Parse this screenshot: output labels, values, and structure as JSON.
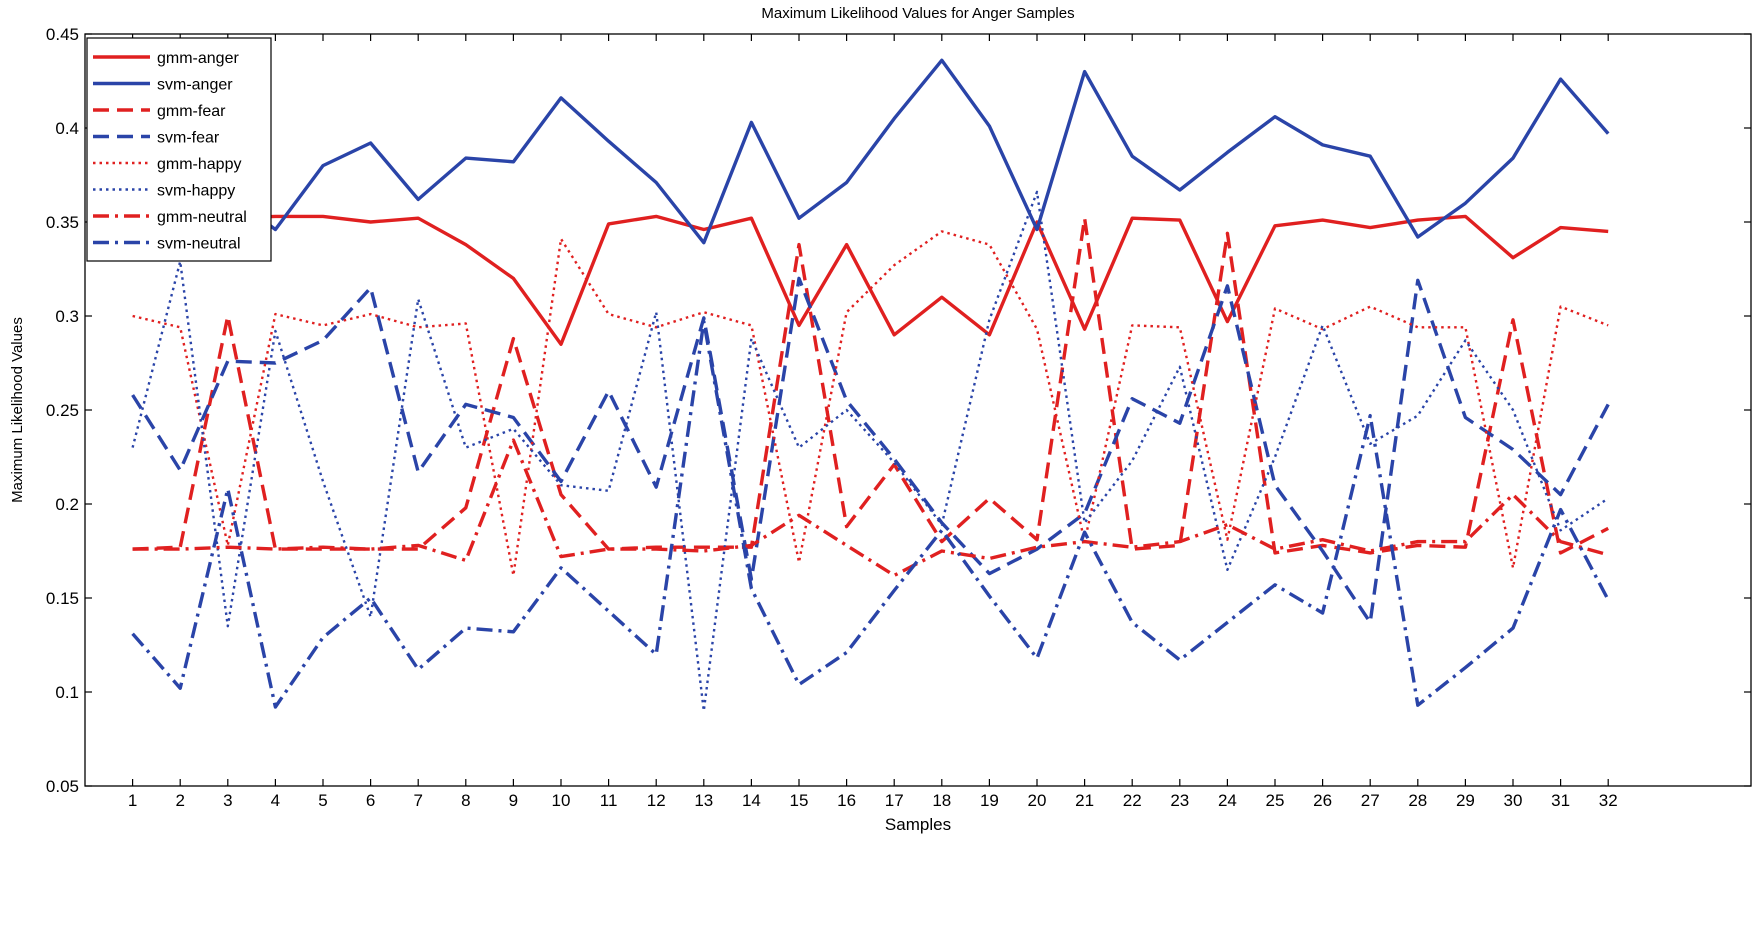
{
  "chart_data": {
    "type": "line",
    "title": "Maximum Likelihood Values for Anger Samples",
    "xlabel": "Samples",
    "ylabel": "Maximum Likelihood Values",
    "x": [
      1,
      2,
      3,
      4,
      5,
      6,
      7,
      8,
      9,
      10,
      11,
      12,
      13,
      14,
      15,
      16,
      17,
      18,
      19,
      20,
      21,
      22,
      23,
      24,
      25,
      26,
      27,
      28,
      29,
      30,
      31,
      32
    ],
    "xlim": [
      0,
      35
    ],
    "ylim": [
      0.05,
      0.45
    ],
    "yticks": [
      "0.05",
      "0.1",
      "0.15",
      "0.2",
      "0.25",
      "0.3",
      "0.35",
      "0.4",
      "0.45"
    ],
    "xticks": [
      "1",
      "2",
      "3",
      "4",
      "5",
      "6",
      "7",
      "8",
      "9",
      "10",
      "11",
      "12",
      "13",
      "14",
      "15",
      "16",
      "17",
      "18",
      "19",
      "20",
      "21",
      "22",
      "23",
      "24",
      "25",
      "26",
      "27",
      "28",
      "29",
      "30",
      "31",
      "32"
    ],
    "grid": false,
    "legend_position": "top-left",
    "series": [
      {
        "name": "gmm-anger",
        "color": "#e02020",
        "dash": "solid",
        "values": [
          0.352,
          0.352,
          0.352,
          0.353,
          0.353,
          0.35,
          0.352,
          0.338,
          0.32,
          0.285,
          0.349,
          0.353,
          0.346,
          0.352,
          0.295,
          0.338,
          0.29,
          0.31,
          0.29,
          0.35,
          0.293,
          0.352,
          0.351,
          0.297,
          0.348,
          0.351,
          0.347,
          0.351,
          0.353,
          0.331,
          0.347,
          0.345
        ]
      },
      {
        "name": "svm-anger",
        "color": "#2a44a8",
        "dash": "solid",
        "values": [
          0.378,
          0.346,
          0.365,
          0.346,
          0.38,
          0.392,
          0.362,
          0.384,
          0.382,
          0.416,
          0.393,
          0.371,
          0.339,
          0.403,
          0.352,
          0.371,
          0.405,
          0.436,
          0.401,
          0.346,
          0.43,
          0.385,
          0.367,
          0.387,
          0.406,
          0.391,
          0.385,
          0.342,
          0.36,
          0.384,
          0.426,
          0.397
        ]
      },
      {
        "name": "gmm-fear",
        "color": "#e02020",
        "dash": "dashed",
        "values": [
          0.176,
          0.177,
          0.3,
          0.176,
          0.176,
          0.176,
          0.176,
          0.198,
          0.288,
          0.205,
          0.176,
          0.177,
          0.177,
          0.177,
          0.338,
          0.188,
          0.221,
          0.18,
          0.203,
          0.181,
          0.352,
          0.176,
          0.178,
          0.344,
          0.174,
          0.178,
          0.174,
          0.178,
          0.177,
          0.298,
          0.174,
          0.187
        ]
      },
      {
        "name": "svm-fear",
        "color": "#2a44a8",
        "dash": "dashed",
        "values": [
          0.258,
          0.218,
          0.276,
          0.275,
          0.287,
          0.315,
          0.217,
          0.253,
          0.246,
          0.212,
          0.26,
          0.209,
          0.299,
          0.16,
          0.32,
          0.255,
          0.224,
          0.19,
          0.163,
          0.176,
          0.195,
          0.256,
          0.243,
          0.316,
          0.21,
          0.175,
          0.137,
          0.319,
          0.246,
          0.229,
          0.205,
          0.253
        ]
      },
      {
        "name": "gmm-happy",
        "color": "#e02020",
        "dash": "dotted",
        "values": [
          0.3,
          0.294,
          0.178,
          0.301,
          0.295,
          0.301,
          0.294,
          0.296,
          0.162,
          0.341,
          0.301,
          0.294,
          0.302,
          0.295,
          0.169,
          0.302,
          0.327,
          0.345,
          0.338,
          0.293,
          0.18,
          0.295,
          0.294,
          0.181,
          0.304,
          0.293,
          0.305,
          0.294,
          0.294,
          0.166,
          0.305,
          0.295
        ]
      },
      {
        "name": "svm-happy",
        "color": "#2a44a8",
        "dash": "dotted",
        "values": [
          0.23,
          0.329,
          0.135,
          0.292,
          0.212,
          0.14,
          0.309,
          0.23,
          0.24,
          0.21,
          0.207,
          0.302,
          0.09,
          0.288,
          0.23,
          0.25,
          0.222,
          0.189,
          0.298,
          0.366,
          0.19,
          0.223,
          0.273,
          0.165,
          0.225,
          0.295,
          0.232,
          0.247,
          0.287,
          0.25,
          0.186,
          0.203
        ]
      },
      {
        "name": "gmm-neutral",
        "color": "#e02020",
        "dash": "dashdot",
        "values": [
          0.176,
          0.176,
          0.177,
          0.176,
          0.177,
          0.176,
          0.178,
          0.17,
          0.234,
          0.172,
          0.176,
          0.176,
          0.175,
          0.178,
          0.194,
          0.178,
          0.162,
          0.175,
          0.171,
          0.177,
          0.18,
          0.177,
          0.18,
          0.189,
          0.176,
          0.181,
          0.175,
          0.18,
          0.18,
          0.205,
          0.18,
          0.173
        ]
      },
      {
        "name": "svm-neutral",
        "color": "#2a44a8",
        "dash": "dashdot",
        "values": [
          0.131,
          0.102,
          0.208,
          0.092,
          0.129,
          0.15,
          0.112,
          0.134,
          0.132,
          0.166,
          0.143,
          0.12,
          0.297,
          0.155,
          0.104,
          0.121,
          0.154,
          0.186,
          0.151,
          0.118,
          0.185,
          0.137,
          0.117,
          0.137,
          0.157,
          0.142,
          0.247,
          0.093,
          0.113,
          0.134,
          0.197,
          0.149
        ]
      }
    ]
  }
}
